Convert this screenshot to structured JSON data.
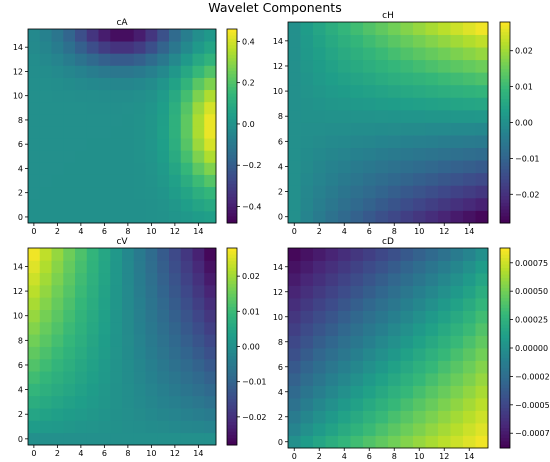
{
  "figure": {
    "title": "Wavelet Components"
  },
  "colormap": {
    "name": "viridis",
    "stops": [
      "#440154",
      "#482878",
      "#3e4989",
      "#31688e",
      "#26828e",
      "#1f9e89",
      "#35b779",
      "#6ece58",
      "#b5de2b",
      "#fde725"
    ]
  },
  "chart_data": [
    {
      "type": "heatmap",
      "title": "cA",
      "size": 16,
      "pattern": "ca",
      "x_ticks": [
        "0",
        "2",
        "4",
        "6",
        "8",
        "10",
        "12",
        "14"
      ],
      "y_ticks": [
        "0",
        "2",
        "4",
        "6",
        "8",
        "10",
        "12",
        "14"
      ],
      "vmin": -0.48,
      "vmax": 0.46,
      "colorbar_ticks": [
        {
          "value": 0.4,
          "label": "0.4"
        },
        {
          "value": 0.2,
          "label": "0.2"
        },
        {
          "value": 0.0,
          "label": "0.0"
        },
        {
          "value": -0.2,
          "label": "−0.2"
        },
        {
          "value": -0.4,
          "label": "−0.4"
        }
      ]
    },
    {
      "type": "heatmap",
      "title": "cH",
      "size": 16,
      "pattern": "ch",
      "x_ticks": [
        "0",
        "2",
        "4",
        "6",
        "8",
        "10",
        "12",
        "14"
      ],
      "y_ticks": [
        "0",
        "2",
        "4",
        "6",
        "8",
        "10",
        "12",
        "14"
      ],
      "vmin": -0.028,
      "vmax": 0.028,
      "colorbar_ticks": [
        {
          "value": 0.02,
          "label": "0.02"
        },
        {
          "value": 0.01,
          "label": "0.01"
        },
        {
          "value": 0.0,
          "label": "0.00"
        },
        {
          "value": -0.01,
          "label": "−0.01"
        },
        {
          "value": -0.02,
          "label": "−0.02"
        }
      ]
    },
    {
      "type": "heatmap",
      "title": "cV",
      "size": 16,
      "pattern": "cv",
      "x_ticks": [
        "0",
        "2",
        "4",
        "6",
        "8",
        "10",
        "12",
        "14"
      ],
      "y_ticks": [
        "0",
        "2",
        "4",
        "6",
        "8",
        "10",
        "12",
        "14"
      ],
      "vmin": -0.028,
      "vmax": 0.028,
      "colorbar_ticks": [
        {
          "value": 0.02,
          "label": "0.02"
        },
        {
          "value": 0.01,
          "label": "0.01"
        },
        {
          "value": 0.0,
          "label": "0.00"
        },
        {
          "value": -0.01,
          "label": "−0.01"
        },
        {
          "value": -0.02,
          "label": "−0.02"
        }
      ]
    },
    {
      "type": "heatmap",
      "title": "cD",
      "size": 16,
      "pattern": "cd",
      "x_ticks": [
        "0",
        "2",
        "4",
        "6",
        "8",
        "10",
        "12",
        "14"
      ],
      "y_ticks": [
        "0",
        "2",
        "4",
        "6",
        "8",
        "10",
        "12",
        "14"
      ],
      "vmin": -0.00088,
      "vmax": 0.00088,
      "colorbar_ticks": [
        {
          "value": 0.00075,
          "label": "0.00075"
        },
        {
          "value": 0.0005,
          "label": "0.00050"
        },
        {
          "value": 0.00025,
          "label": "0.00025"
        },
        {
          "value": 0.0,
          "label": "0.00000"
        },
        {
          "value": -0.00025,
          "label": "−0.00025"
        },
        {
          "value": -0.0005,
          "label": "−0.00050"
        },
        {
          "value": -0.00075,
          "label": "−0.00075"
        }
      ]
    }
  ]
}
